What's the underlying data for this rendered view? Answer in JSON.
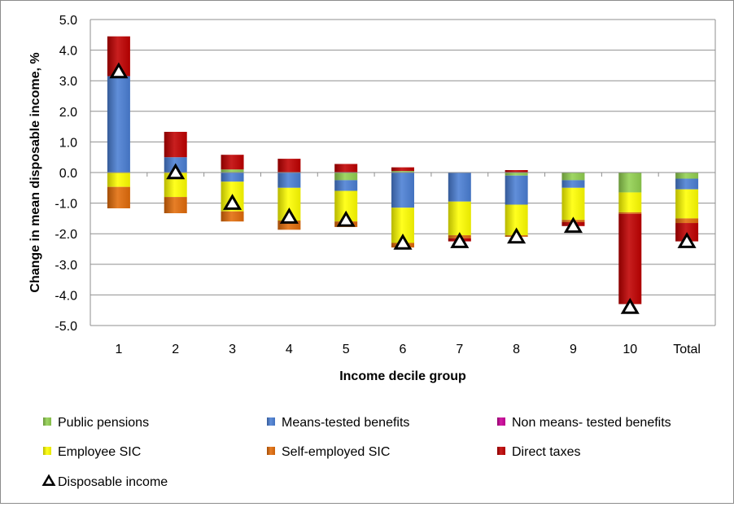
{
  "chart_data": {
    "type": "bar",
    "stacked": true,
    "title": "",
    "xlabel": "Income decile group",
    "ylabel": "Change in mean disposable income, %",
    "ylim": [
      -5.0,
      5.0
    ],
    "ytick_step": 1.0,
    "ytick_labels": [
      "5.0",
      "4.0",
      "3.0",
      "2.0",
      "1.0",
      "0.0",
      "-1.0",
      "-2.0",
      "-3.0",
      "-4.0",
      "-5.0"
    ],
    "grid": true,
    "categories": [
      "1",
      "2",
      "3",
      "4",
      "5",
      "6",
      "7",
      "8",
      "9",
      "10",
      "Total"
    ],
    "series": [
      {
        "name": "Public pensions",
        "key": "public_pensions",
        "color": "#92d050",
        "values": [
          0.0,
          0.0,
          0.1,
          0.0,
          -0.25,
          0.05,
          0.0,
          -0.1,
          -0.25,
          -0.65,
          -0.2
        ]
      },
      {
        "name": "Means-tested benefits",
        "key": "means_tested",
        "color": "#4a7fd4",
        "values": [
          3.15,
          0.5,
          -0.3,
          -0.5,
          -0.35,
          -1.15,
          -0.95,
          -0.95,
          -0.25,
          0.0,
          -0.35
        ]
      },
      {
        "name": "Non means- tested benefits",
        "key": "non_means_tested",
        "color": "#cc0099",
        "values": [
          0.0,
          0.0,
          0.0,
          0.0,
          0.0,
          0.0,
          0.0,
          0.0,
          0.0,
          0.0,
          0.0
        ]
      },
      {
        "name": "Employee SIC",
        "key": "employee_sic",
        "color": "#ffff00",
        "values": [
          -0.47,
          -0.8,
          -0.97,
          -1.07,
          -1.0,
          -1.15,
          -1.1,
          -1.0,
          -1.05,
          -0.65,
          -0.95
        ]
      },
      {
        "name": "Self-employed SIC",
        "key": "self_employed_sic",
        "color": "#e36c0a",
        "values": [
          -0.7,
          -0.53,
          -0.33,
          -0.3,
          -0.18,
          -0.15,
          -0.1,
          -0.05,
          -0.07,
          -0.05,
          -0.15
        ]
      },
      {
        "name": "Direct taxes",
        "key": "direct_taxes",
        "color": "#c00000",
        "values": [
          1.3,
          0.83,
          0.48,
          0.45,
          0.28,
          0.12,
          -0.1,
          0.08,
          -0.13,
          -2.95,
          -0.6
        ]
      }
    ],
    "line_series": {
      "name": "Disposable income",
      "marker": "triangle-open",
      "values": [
        3.3,
        0.0,
        -1.0,
        -1.45,
        -1.55,
        -2.3,
        -2.25,
        -2.1,
        -1.75,
        -4.4,
        -2.25
      ]
    },
    "legend_position": "bottom"
  }
}
